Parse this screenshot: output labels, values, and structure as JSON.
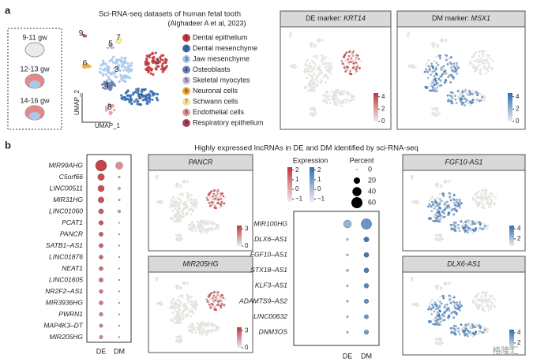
{
  "panel_a": {
    "label": "a",
    "title": "Sci-RNA-seq datasets of human fetal tooth",
    "citation": "(Alghadeer A et al, 2023)",
    "stages": [
      "9-11 gw",
      "12-13 gw",
      "14-16 gw"
    ],
    "umap_y": "UMAP_2",
    "umap_x": "UMAP_1",
    "clusters": [
      {
        "number": "1",
        "name": "Dental epithelium",
        "color": "#c0393b"
      },
      {
        "number": "2",
        "name": "Dental mesenchyme",
        "color": "#3a6fb0"
      },
      {
        "number": "3",
        "name": "Jaw mesenchyme",
        "color": "#a9c9ea"
      },
      {
        "number": "4",
        "name": "Osteoblasts",
        "color": "#6b7fb6"
      },
      {
        "number": "5",
        "name": "Skeletal myocytes",
        "color": "#c9b5da"
      },
      {
        "number": "6",
        "name": "Neuronal cells",
        "color": "#f0a830"
      },
      {
        "number": "7",
        "name": "Schwann cells",
        "color": "#f2e29c"
      },
      {
        "number": "8",
        "name": "Endothelial cells",
        "color": "#e89c9c"
      },
      {
        "number": "9",
        "name": "Respiratory epithelium",
        "color": "#b04060"
      }
    ],
    "feature_plots": [
      {
        "prefix": "DE marker: ",
        "gene": "KRT14",
        "color": "#c4323a",
        "lim": [
          0,
          4.6
        ],
        "ticks": [
          0,
          2,
          4
        ]
      },
      {
        "prefix": "DM marker: ",
        "gene": "MSX1",
        "color": "#2f6db3",
        "lim": [
          0,
          4.6
        ],
        "ticks": [
          0,
          2,
          4
        ]
      }
    ]
  },
  "panel_b": {
    "label": "b",
    "title": "Highly expressed lncRNAs in DE and DM identified by sci-RNA-seq",
    "feature_plots": [
      {
        "gene": "PANCR",
        "color": "#c4323a",
        "lim": [
          0,
          3.6
        ],
        "ticks": [
          0,
          3
        ]
      },
      {
        "gene": "MIR205HG",
        "color": "#c4323a",
        "lim": [
          0,
          3.6
        ],
        "ticks": [
          0,
          3
        ]
      },
      {
        "gene": "FGF10-AS1",
        "color": "#2f6db3",
        "lim": [
          0.6,
          4.6
        ],
        "ticks": [
          2,
          4
        ]
      },
      {
        "gene": "DLX6-AS1",
        "color": "#2f6db3",
        "lim": [
          0.6,
          4.6
        ],
        "ticks": [
          2,
          4
        ]
      }
    ],
    "legend": {
      "expression_title": "Expression",
      "percent_title": "Percent",
      "low_color": "#eeeeee",
      "red": "#c4323a",
      "blue": "#2f6db3",
      "expression_lim": [
        -1.3,
        2.3
      ],
      "expression_ticks": [
        2,
        1,
        0,
        {
          "value": -1,
          "label": "−1"
        }
      ],
      "percent_ticks": [
        0,
        20,
        40,
        60
      ],
      "percent_max": 60
    },
    "dotplots": [
      {
        "color": "#c4323a",
        "genes": [
          "MIR99AHG",
          "C5orf66",
          "LINC00511",
          "MIR31HG",
          "LINC01060",
          "PCAT1",
          "PANCR",
          "SATB1–AS1",
          "LINC01876",
          "NEAT1",
          "LINC01605",
          "NR2F2–AS1",
          "MIR3936HG",
          "PWRN1",
          "MAP4K3–DT",
          "MIR205HG"
        ],
        "series": [
          {
            "name": "DE",
            "expression": [
              2,
              1.8,
              1.8,
              1.7,
              1.6,
              1.6,
              1.5,
              1.4,
              1.3,
              1.2,
              1.1,
              1,
              0.9,
              0.8,
              0.8,
              0.7
            ],
            "percent": [
              60,
              22,
              20,
              17,
              12,
              10,
              9,
              9,
              8,
              8,
              9,
              7,
              8,
              7,
              6,
              6
            ]
          },
          {
            "name": "DM",
            "expression": [
              0.5,
              0.2,
              0.3,
              0,
              0.3,
              -0.5,
              0,
              0,
              0,
              0,
              0,
              0,
              0,
              0,
              0,
              0
            ],
            "percent": [
              25,
              2,
              3,
              2,
              4,
              1,
              1,
              1,
              1,
              1,
              1,
              1,
              1,
              1,
              1,
              1
            ]
          }
        ]
      },
      {
        "color": "#2f6db3",
        "genes": [
          "MIR100HG",
          "DLX6–AS1",
          "FGF10–AS1",
          "STX18–AS1",
          "KLF3–AS1",
          "ADAMTS9–AS2",
          "LINC00632",
          "DNM3OS"
        ],
        "series": [
          {
            "name": "DE",
            "expression": [
              0.3,
              0,
              0,
              0,
              0,
              0,
              0,
              0
            ],
            "percent": [
              30,
              2,
              2,
              3,
              2,
              2,
              2,
              2
            ]
          },
          {
            "name": "DM",
            "expression": [
              1.2,
              2,
              2,
              1.8,
              1.6,
              1.4,
              1.2,
              1
            ],
            "percent": [
              55,
              13,
              12,
              12,
              11,
              10,
              9,
              10
            ]
          }
        ]
      }
    ]
  },
  "watermark": "格隆汇"
}
